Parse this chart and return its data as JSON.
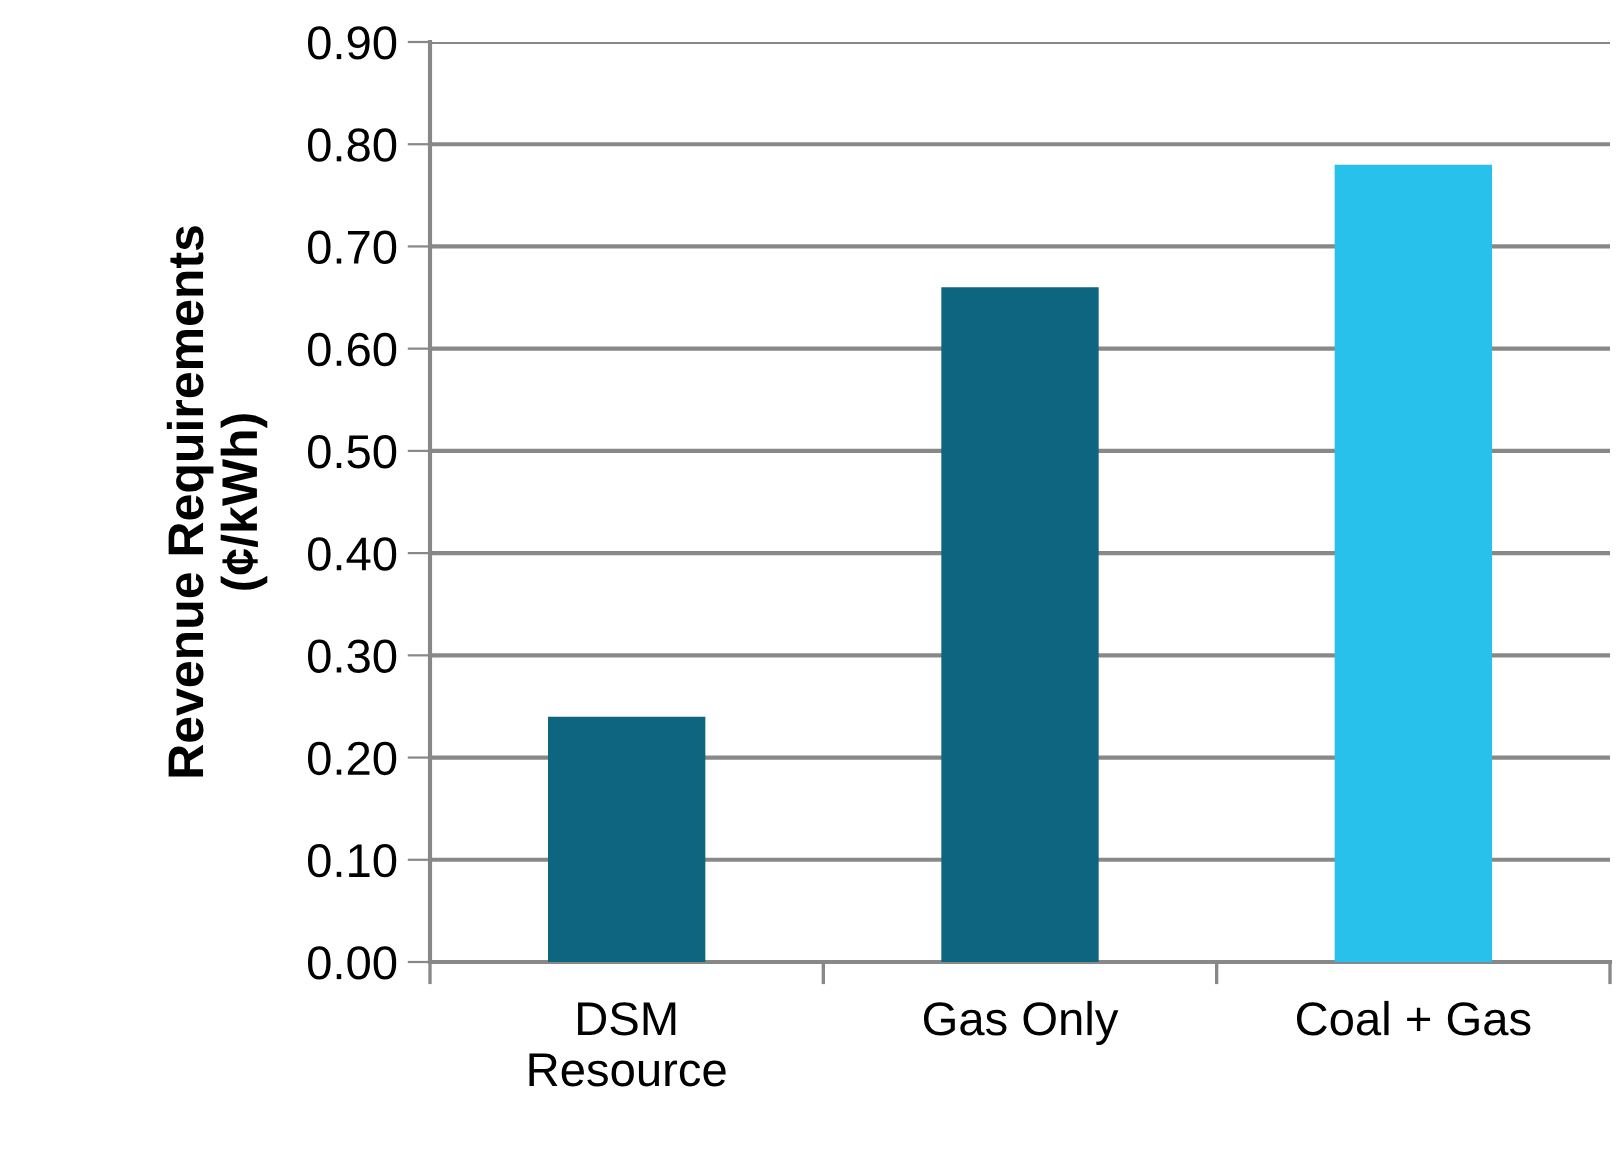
{
  "chart_data": {
    "type": "bar",
    "ylabel": "Revenue Requirements\n(¢/kWh)",
    "categories": [
      "DSM\nResource",
      "Gas Only",
      "Coal + Gas"
    ],
    "values": [
      0.24,
      0.66,
      0.78
    ],
    "colors": [
      "#0d6580",
      "#0d6580",
      "#27c1ec"
    ],
    "ylim": [
      0,
      0.9
    ],
    "yticks": [
      {
        "value": 0,
        "label": "0.00"
      },
      {
        "value": 0.1,
        "label": "0.10"
      },
      {
        "value": 0.2,
        "label": "0.20"
      },
      {
        "value": 0.3,
        "label": "0.30"
      },
      {
        "value": 0.4,
        "label": "0.40"
      },
      {
        "value": 0.5,
        "label": "0.50"
      },
      {
        "value": 0.6,
        "label": "0.60"
      },
      {
        "value": 0.7,
        "label": "0.70"
      },
      {
        "value": 0.8,
        "label": "0.80"
      },
      {
        "value": 0.9,
        "label": "0.90"
      }
    ],
    "grid": "y",
    "legend": false
  }
}
